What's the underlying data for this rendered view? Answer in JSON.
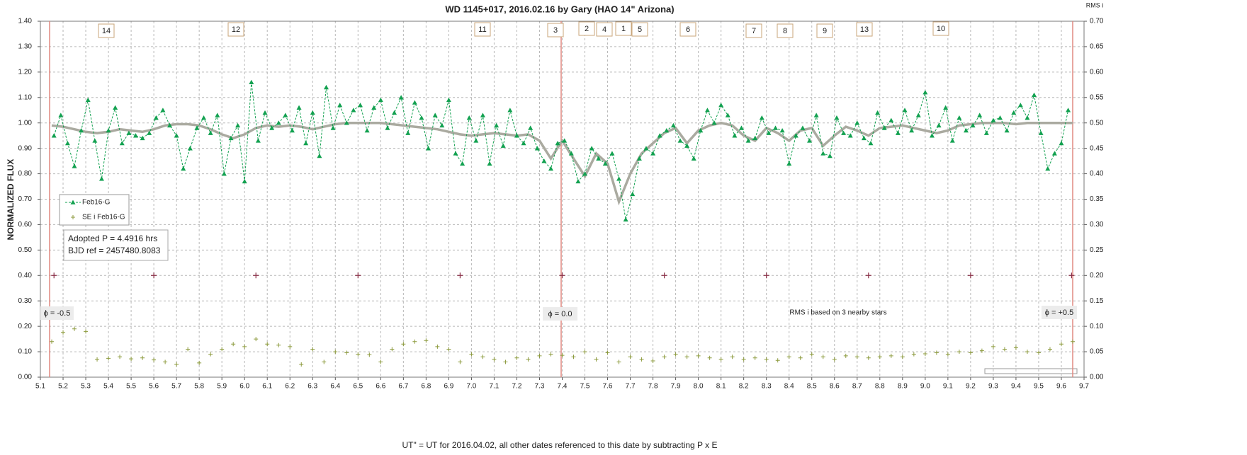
{
  "chart_data": {
    "type": "scatter",
    "title": "WD 1145+017,  2016.02.16  by Gary (HAO 14\" Arizona)",
    "x_label": "UT\" = UT for 2016.04.02, all other dates referenced  to this date by subtracting P x E",
    "y_label": "NORMALIZED  FLUX",
    "y2_label": "RMS i",
    "xlim": [
      5.1,
      9.7
    ],
    "xticks": [
      5.1,
      5.2,
      5.3,
      5.4,
      5.5,
      5.6,
      5.7,
      5.8,
      5.9,
      {
        "value": 6,
        "label": "6.0"
      },
      6.1,
      6.2,
      6.3,
      6.4,
      6.5,
      6.6,
      6.7,
      6.8,
      6.9,
      {
        "value": 7,
        "label": "7.0"
      },
      7.1,
      7.2,
      7.3,
      7.4,
      7.5,
      7.6,
      7.7,
      7.8,
      7.9,
      {
        "value": 8,
        "label": "8.0"
      },
      8.1,
      8.2,
      8.3,
      8.4,
      8.5,
      8.6,
      8.7,
      8.8,
      8.9,
      {
        "value": 9,
        "label": "9.0"
      },
      9.1,
      9.2,
      9.3,
      9.4,
      9.5,
      9.6,
      9.7
    ],
    "ylim": [
      0,
      1.4
    ],
    "yticks": [
      {
        "value": 0,
        "label": "0.00"
      },
      {
        "value": 0.1,
        "label": "0.10"
      },
      {
        "value": 0.2,
        "label": "0.20"
      },
      {
        "value": 0.3,
        "label": "0.30"
      },
      {
        "value": 0.4,
        "label": "0.40"
      },
      {
        "value": 0.5,
        "label": "0.50"
      },
      {
        "value": 0.6,
        "label": "0.60"
      },
      {
        "value": 0.7,
        "label": "0.70"
      },
      {
        "value": 0.8,
        "label": "0.80"
      },
      {
        "value": 0.9,
        "label": "0.90"
      },
      {
        "value": 1,
        "label": "1.00"
      },
      {
        "value": 1.1,
        "label": "1.10"
      },
      {
        "value": 1.2,
        "label": "1.20"
      },
      {
        "value": 1.3,
        "label": "1.30"
      },
      {
        "value": 1.4,
        "label": "1.40"
      }
    ],
    "y2lim": [
      0,
      0.7
    ],
    "y2ticks": [
      {
        "value": 0,
        "label": "0.00"
      },
      0.05,
      {
        "value": 0.1,
        "label": "0.10"
      },
      0.15,
      {
        "value": 0.2,
        "label": "0.20"
      },
      0.25,
      {
        "value": 0.3,
        "label": "0.30"
      },
      0.35,
      {
        "value": 0.4,
        "label": "0.40"
      },
      0.45,
      {
        "value": 0.5,
        "label": "0.50"
      },
      0.55,
      {
        "value": 0.6,
        "label": "0.60"
      },
      0.65,
      {
        "value": 0.7,
        "label": "0.70"
      }
    ],
    "grid": true,
    "legend": "left",
    "series": [
      {
        "name": "Feb16-G",
        "color": "#12a150",
        "marker": "triangle",
        "x": [
          5.16,
          5.19,
          5.22,
          5.25,
          5.28,
          5.31,
          5.34,
          5.37,
          5.4,
          5.43,
          5.46,
          5.49,
          5.52,
          5.55,
          5.58,
          5.61,
          5.64,
          5.67,
          5.7,
          5.73,
          5.76,
          5.79,
          5.82,
          5.85,
          5.88,
          5.91,
          5.94,
          5.97,
          6.0,
          6.03,
          6.06,
          6.09,
          6.12,
          6.15,
          6.18,
          6.21,
          6.24,
          6.27,
          6.3,
          6.33,
          6.36,
          6.39,
          6.42,
          6.45,
          6.48,
          6.51,
          6.54,
          6.57,
          6.6,
          6.63,
          6.66,
          6.69,
          6.72,
          6.75,
          6.78,
          6.81,
          6.84,
          6.87,
          6.9,
          6.93,
          6.96,
          6.99,
          7.02,
          7.05,
          7.08,
          7.11,
          7.14,
          7.17,
          7.2,
          7.23,
          7.26,
          7.29,
          7.32,
          7.35,
          7.38,
          7.41,
          7.44,
          7.47,
          7.5,
          7.53,
          7.56,
          7.59,
          7.62,
          7.65,
          7.68,
          7.71,
          7.74,
          7.77,
          7.8,
          7.83,
          7.86,
          7.89,
          7.92,
          7.95,
          7.98,
          8.01,
          8.04,
          8.07,
          8.1,
          8.13,
          8.16,
          8.19,
          8.22,
          8.25,
          8.28,
          8.31,
          8.34,
          8.37,
          8.4,
          8.43,
          8.46,
          8.49,
          8.52,
          8.55,
          8.58,
          8.61,
          8.64,
          8.67,
          8.7,
          8.73,
          8.76,
          8.79,
          8.82,
          8.85,
          8.88,
          8.91,
          8.94,
          8.97,
          9.0,
          9.03,
          9.06,
          9.09,
          9.12,
          9.15,
          9.18,
          9.21,
          9.24,
          9.27,
          9.3,
          9.33,
          9.36,
          9.39,
          9.42,
          9.45,
          9.48,
          9.51,
          9.54,
          9.57,
          9.6,
          9.63
        ],
        "values": [
          0.95,
          1.03,
          0.92,
          0.83,
          0.97,
          1.09,
          0.93,
          0.78,
          0.97,
          1.06,
          0.92,
          0.96,
          0.95,
          0.94,
          0.96,
          1.02,
          1.05,
          0.99,
          0.95,
          0.82,
          0.9,
          0.98,
          1.02,
          0.96,
          1.03,
          0.8,
          0.94,
          0.99,
          0.77,
          1.16,
          0.93,
          1.04,
          0.98,
          1.0,
          1.03,
          0.97,
          1.06,
          0.92,
          1.04,
          0.87,
          1.14,
          0.98,
          1.07,
          1.0,
          1.05,
          1.07,
          0.97,
          1.06,
          1.09,
          0.98,
          1.04,
          1.1,
          0.96,
          1.08,
          1.02,
          0.9,
          1.03,
          0.99,
          1.09,
          0.88,
          0.84,
          1.02,
          0.93,
          1.03,
          0.84,
          0.99,
          0.91,
          1.05,
          0.95,
          0.92,
          0.98,
          0.9,
          0.85,
          0.82,
          0.92,
          0.93,
          0.88,
          0.77,
          0.8,
          0.9,
          0.86,
          0.84,
          0.88,
          0.78,
          0.62,
          0.72,
          0.86,
          0.9,
          0.88,
          0.95,
          0.97,
          0.99,
          0.93,
          0.91,
          0.86,
          0.97,
          1.05,
          1.0,
          1.07,
          1.03,
          0.95,
          0.98,
          0.93,
          0.94,
          1.02,
          0.96,
          0.98,
          0.97,
          0.84,
          0.95,
          0.98,
          0.93,
          1.03,
          0.88,
          0.87,
          1.02,
          0.96,
          0.95,
          1.0,
          0.94,
          0.92,
          1.04,
          0.98,
          1.01,
          0.96,
          1.05,
          0.97,
          1.03,
          1.12,
          0.95,
          0.99,
          1.06,
          0.93,
          1.02,
          0.97,
          0.99,
          1.03,
          0.96,
          1.01,
          1.02,
          0.97,
          1.04,
          1.07,
          1.02,
          1.11,
          0.96,
          0.82,
          0.88,
          0.92,
          1.05
        ]
      },
      {
        "name": "SE i Feb16-G",
        "color": "#8c9a3c",
        "marker": "plus",
        "axis": "y2",
        "x": [
          5.15,
          5.2,
          5.25,
          5.3,
          5.35,
          5.4,
          5.45,
          5.5,
          5.55,
          5.6,
          5.65,
          5.7,
          5.75,
          5.8,
          5.85,
          5.9,
          5.95,
          6.0,
          6.05,
          6.1,
          6.15,
          6.2,
          6.25,
          6.3,
          6.35,
          6.4,
          6.45,
          6.5,
          6.55,
          6.6,
          6.65,
          6.7,
          6.75,
          6.8,
          6.85,
          6.9,
          6.95,
          7.0,
          7.05,
          7.1,
          7.15,
          7.2,
          7.25,
          7.3,
          7.35,
          7.4,
          7.45,
          7.5,
          7.55,
          7.6,
          7.65,
          7.7,
          7.75,
          7.8,
          7.85,
          7.9,
          7.95,
          8.0,
          8.05,
          8.1,
          8.15,
          8.2,
          8.25,
          8.3,
          8.35,
          8.4,
          8.45,
          8.5,
          8.55,
          8.6,
          8.65,
          8.7,
          8.75,
          8.8,
          8.85,
          8.9,
          8.95,
          9.0,
          9.05,
          9.1,
          9.15,
          9.2,
          9.25,
          9.3,
          9.35,
          9.4,
          9.45,
          9.5,
          9.55,
          9.6,
          9.65
        ],
        "values": [
          0.07,
          0.088,
          0.095,
          0.09,
          0.035,
          0.037,
          0.04,
          0.036,
          0.038,
          0.034,
          0.03,
          0.025,
          0.055,
          0.028,
          0.045,
          0.055,
          0.065,
          0.06,
          0.075,
          0.065,
          0.063,
          0.06,
          0.025,
          0.055,
          0.03,
          0.05,
          0.048,
          0.045,
          0.044,
          0.03,
          0.055,
          0.065,
          0.07,
          0.072,
          0.06,
          0.055,
          0.03,
          0.045,
          0.04,
          0.035,
          0.03,
          0.038,
          0.035,
          0.042,
          0.045,
          0.043,
          0.04,
          0.05,
          0.035,
          0.048,
          0.03,
          0.04,
          0.035,
          0.032,
          0.04,
          0.045,
          0.04,
          0.042,
          0.038,
          0.035,
          0.04,
          0.035,
          0.038,
          0.035,
          0.033,
          0.04,
          0.038,
          0.045,
          0.04,
          0.035,
          0.042,
          0.04,
          0.038,
          0.04,
          0.042,
          0.04,
          0.045,
          0.046,
          0.048,
          0.045,
          0.05,
          0.048,
          0.052,
          0.06,
          0.055,
          0.058,
          0.05,
          0.048,
          0.055,
          0.065,
          0.07
        ]
      }
    ],
    "model": {
      "color": "#aaaaa0",
      "x": [
        5.15,
        5.2,
        5.25,
        5.3,
        5.35,
        5.4,
        5.45,
        5.5,
        5.55,
        5.6,
        5.65,
        5.7,
        5.75,
        5.8,
        5.85,
        5.9,
        5.95,
        6.0,
        6.05,
        6.1,
        6.15,
        6.2,
        6.25,
        6.3,
        6.35,
        6.4,
        6.45,
        6.5,
        6.55,
        6.6,
        6.65,
        6.7,
        6.75,
        6.8,
        6.85,
        6.9,
        6.95,
        7.0,
        7.05,
        7.1,
        7.15,
        7.2,
        7.25,
        7.3,
        7.35,
        7.4,
        7.45,
        7.5,
        7.55,
        7.6,
        7.65,
        7.7,
        7.75,
        7.8,
        7.85,
        7.9,
        7.95,
        8.0,
        8.05,
        8.1,
        8.15,
        8.2,
        8.25,
        8.3,
        8.35,
        8.4,
        8.45,
        8.5,
        8.55,
        8.6,
        8.65,
        8.7,
        8.75,
        8.8,
        8.85,
        8.9,
        8.95,
        9.0,
        9.05,
        9.1,
        9.15,
        9.2,
        9.25,
        9.3,
        9.35,
        9.4,
        9.45,
        9.5,
        9.55,
        9.6,
        9.65
      ],
      "values": [
        0.99,
        0.985,
        0.975,
        0.965,
        0.96,
        0.965,
        0.975,
        0.97,
        0.965,
        0.975,
        0.99,
        0.995,
        0.995,
        0.99,
        0.975,
        0.955,
        0.94,
        0.955,
        0.98,
        0.99,
        0.985,
        0.99,
        0.985,
        0.975,
        0.985,
        0.995,
        1.0,
        1.0,
        1.0,
        1.0,
        0.995,
        0.99,
        0.985,
        0.98,
        0.975,
        0.965,
        0.955,
        0.95,
        0.955,
        0.96,
        0.955,
        0.95,
        0.955,
        0.93,
        0.86,
        0.93,
        0.86,
        0.79,
        0.88,
        0.84,
        0.69,
        0.8,
        0.88,
        0.92,
        0.96,
        0.98,
        0.92,
        0.97,
        0.99,
        1.0,
        0.99,
        0.95,
        0.93,
        0.98,
        0.96,
        0.93,
        0.97,
        0.98,
        0.91,
        0.95,
        0.985,
        0.97,
        0.95,
        0.98,
        0.985,
        0.99,
        0.98,
        0.97,
        0.96,
        0.97,
        0.99,
        0.995,
        1.0,
        1.0,
        1.0,
        0.995,
        1.0,
        1.0,
        1.0,
        1.0,
        1.0
      ]
    },
    "markers": {
      "color": "#8b3048",
      "x": [
        5.16,
        5.6,
        6.05,
        6.5,
        6.95,
        7.4,
        7.85,
        8.3,
        8.75,
        9.2,
        9.645
      ],
      "values": [
        0.4,
        0.4,
        0.4,
        0.4,
        0.4,
        0.4,
        0.4,
        0.4,
        0.4,
        0.4,
        0.4
      ]
    },
    "dip_labels": [
      "14",
      "12",
      "11",
      "3",
      "2",
      "4",
      "1",
      "5",
      "6",
      "7",
      "8",
      "9",
      "13",
      "10"
    ],
    "phase_labels": [
      "ϕ = -0.5",
      "ϕ = 0.0",
      "ϕ = +0.5"
    ],
    "rms_note": "RMS i based on 3 nearby stars",
    "info": [
      "Adopted P = 4.4916 hrs",
      "BJD ref = 2457480.8083"
    ]
  }
}
